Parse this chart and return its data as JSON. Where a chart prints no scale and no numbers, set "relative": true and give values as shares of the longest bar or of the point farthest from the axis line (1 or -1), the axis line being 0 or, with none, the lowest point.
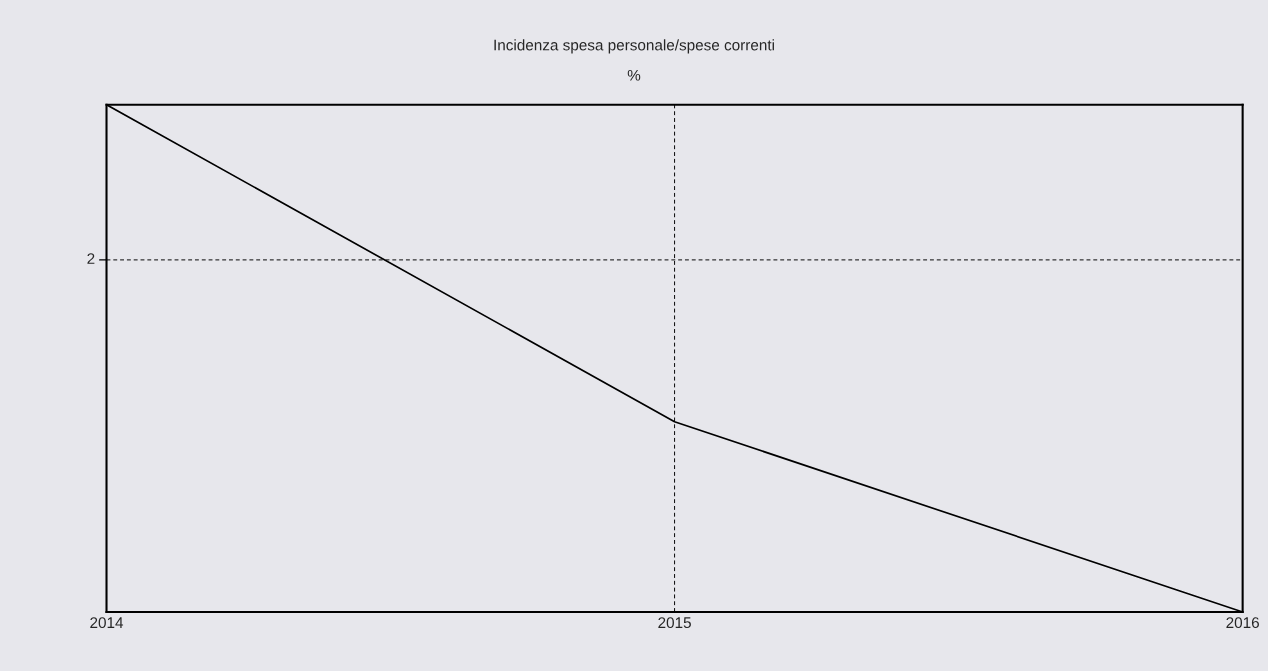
{
  "chart_data": {
    "type": "line",
    "title": "Incidenza spesa personale/spese correnti",
    "subtitle": "%",
    "x": [
      2014,
      2015,
      2016
    ],
    "series": [
      {
        "color": "#000000",
        "values": [
          1,
          0.375,
          0
        ]
      }
    ],
    "relative": true,
    "xlim": [
      2014,
      2016
    ],
    "xticks": [
      2014,
      2015,
      2016
    ],
    "ref_lines": [
      {
        "axis": "y",
        "value": 0.694,
        "line_style": "dashed",
        "color": "#000000"
      }
    ],
    "annotations": [
      "2"
    ],
    "grid": "x",
    "legend": false,
    "marker": "none",
    "line_style": "solid"
  }
}
